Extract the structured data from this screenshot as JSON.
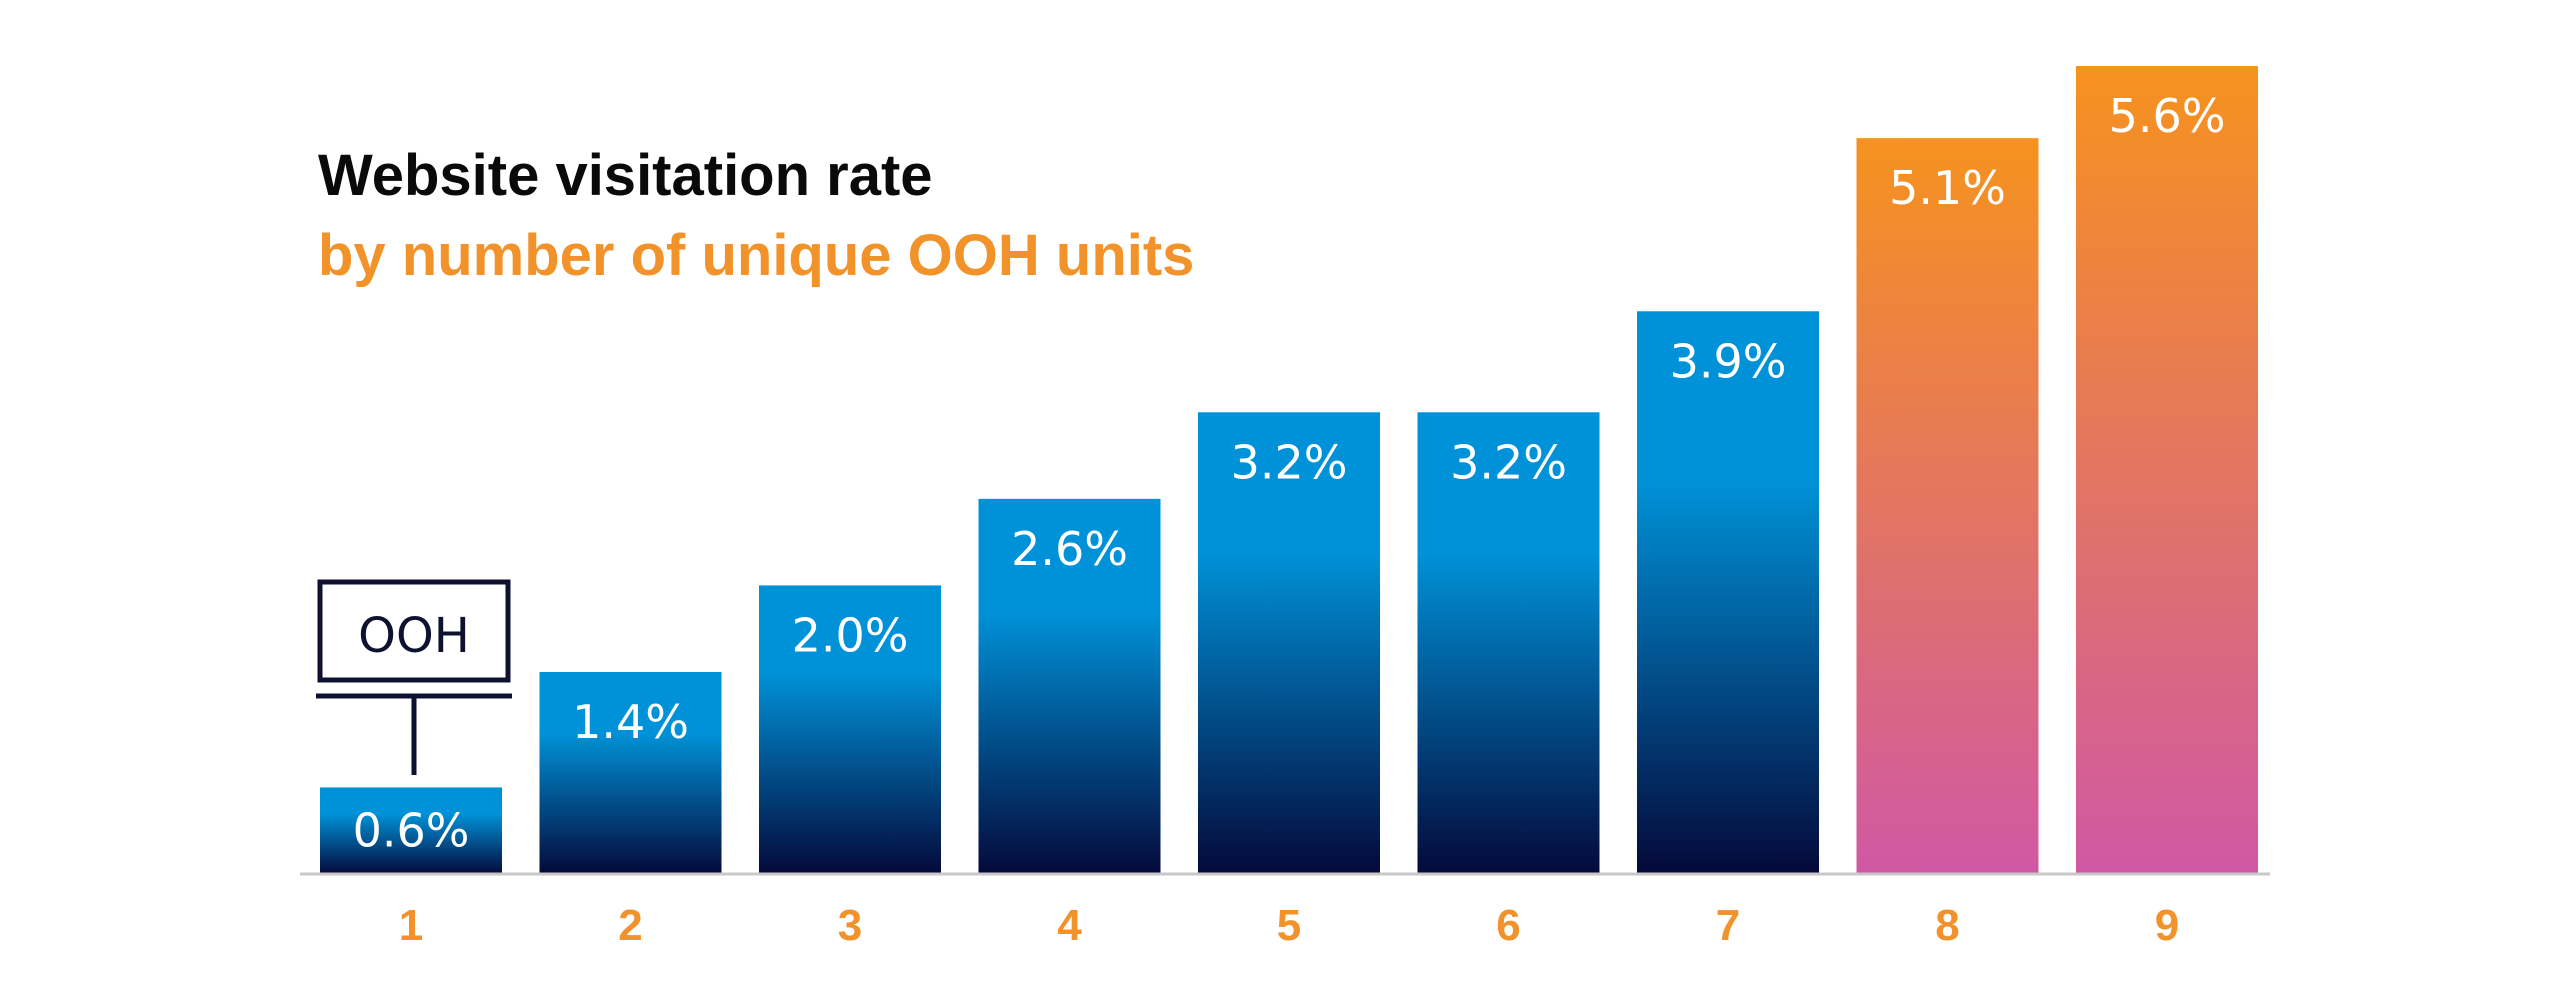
{
  "title": "Website visitation rate",
  "subtitle": "by number of unique OOH units",
  "sign_label": "OOH",
  "colors": {
    "title": "#0a0a0a",
    "accent": "#f2922a",
    "blue_top": "#0092d8",
    "blue_bottom": "#04093a",
    "orange_top": "#f6921e",
    "pink_bottom": "#d058a4",
    "axis": "#c8c8c8",
    "sign": "#0e1230"
  },
  "chart_data": {
    "type": "bar",
    "title": "Website visitation rate",
    "subtitle": "by number of unique OOH units",
    "categories": [
      "1",
      "2",
      "3",
      "4",
      "5",
      "6",
      "7",
      "8",
      "9"
    ],
    "values": [
      0.6,
      1.4,
      2.0,
      2.6,
      3.2,
      3.2,
      3.9,
      5.1,
      5.6
    ],
    "value_labels": [
      "0.6%",
      "1.4%",
      "2.0%",
      "2.6%",
      "3.2%",
      "3.2%",
      "3.9%",
      "5.1%",
      "5.6%"
    ],
    "bar_styles": [
      "blue",
      "blue",
      "blue",
      "blue",
      "blue",
      "blue",
      "blue",
      "orange",
      "orange"
    ],
    "xlabel": "",
    "ylabel": "",
    "ylim": [
      0,
      5.6
    ],
    "grid": false
  }
}
